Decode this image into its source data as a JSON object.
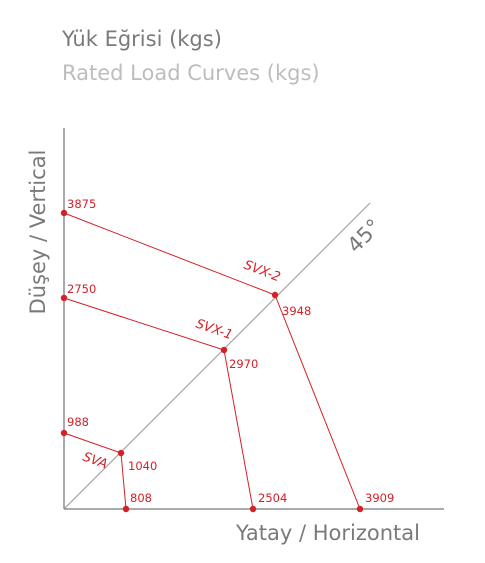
{
  "header": {
    "title": "Yük Eğrisi (kgs)",
    "subtitle": "Rated Load Curves (kgs)"
  },
  "axes": {
    "vertical": "Düşey / Vertical",
    "horizontal": "Yatay / Horizontal",
    "diagonal": "45°"
  },
  "curves": [
    {
      "label": "SVX-2",
      "points": [
        3875,
        3948,
        3909
      ]
    },
    {
      "label": "SVX-1",
      "points": [
        2750,
        2970,
        2504
      ]
    },
    {
      "label": "SVA",
      "points": [
        988,
        1040,
        808
      ]
    }
  ]
}
